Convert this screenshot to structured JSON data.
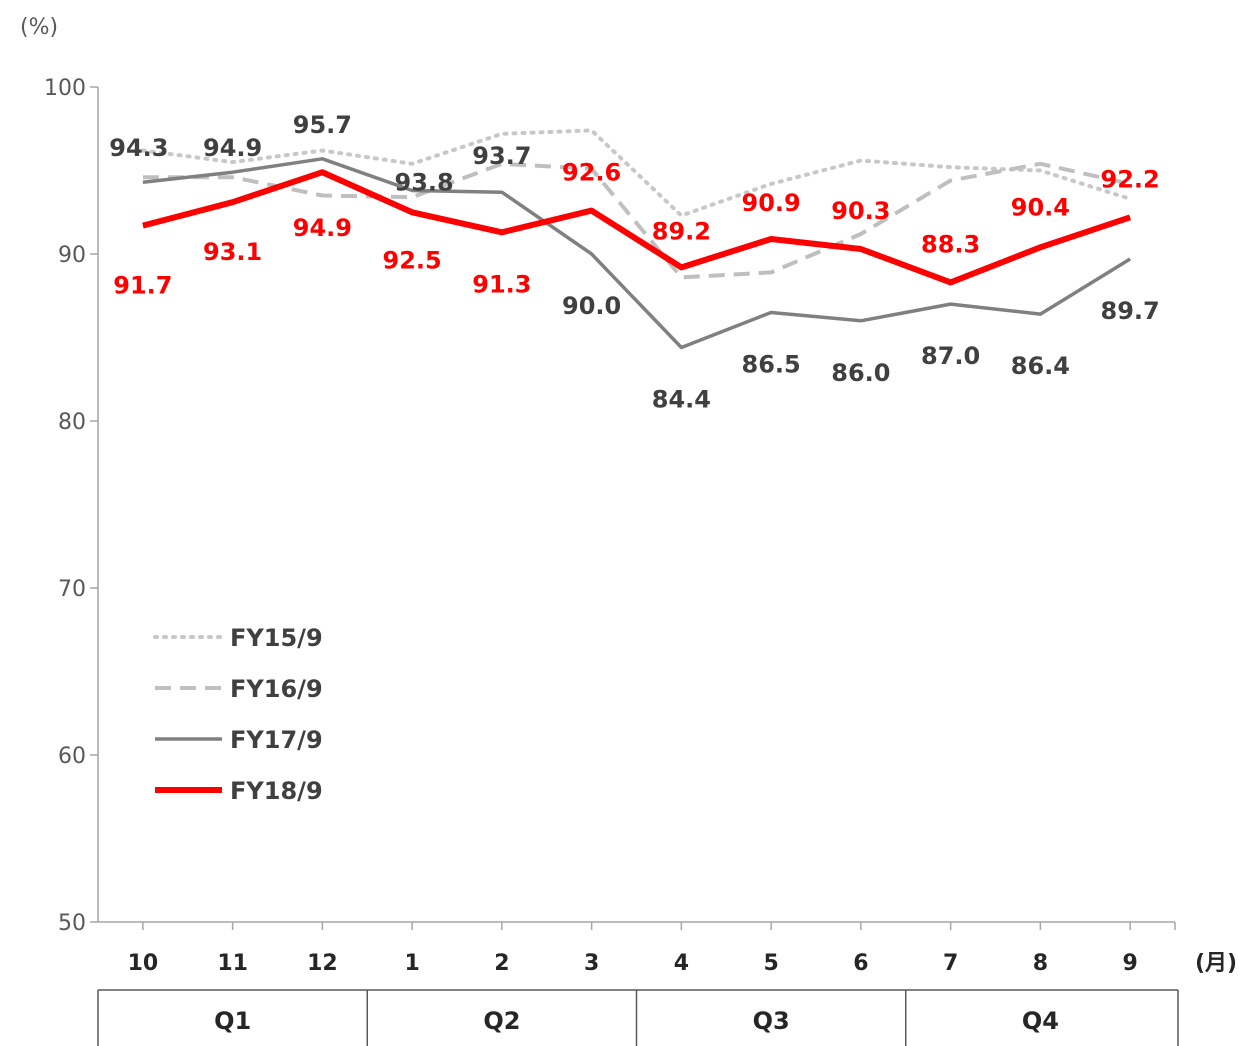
{
  "chart_data": {
    "type": "line",
    "y_unit": "(%)",
    "x_unit": "(月)",
    "categories": [
      "10",
      "11",
      "12",
      "1",
      "2",
      "3",
      "4",
      "5",
      "6",
      "7",
      "8",
      "9"
    ],
    "quarters": [
      "Q1",
      "Q2",
      "Q3",
      "Q4"
    ],
    "ylim": [
      50,
      100
    ],
    "yticks": [
      "50",
      "60",
      "70",
      "80",
      "90",
      "100"
    ],
    "grid": false,
    "legend_position": "lower-left",
    "series": [
      {
        "name": "FY15/9",
        "style": "dotted",
        "color": "#c8c8c8",
        "values": [
          96.2,
          95.5,
          96.2,
          95.4,
          97.2,
          97.4,
          92.3,
          94.2,
          95.6,
          95.2,
          95.0,
          93.3
        ]
      },
      {
        "name": "FY16/9",
        "style": "dashed",
        "color": "#bfbfbf",
        "values": [
          94.6,
          94.6,
          93.5,
          93.4,
          95.4,
          95.1,
          88.6,
          88.9,
          91.2,
          94.4,
          95.4,
          94.2
        ]
      },
      {
        "name": "FY17/9",
        "style": "solid",
        "color": "#808080",
        "values": [
          94.3,
          94.9,
          95.7,
          93.8,
          93.7,
          90.0,
          84.4,
          86.5,
          86.0,
          87.0,
          86.4,
          89.7
        ],
        "labels": [
          "94.3",
          "94.9",
          "95.7",
          "93.8",
          "93.7",
          "90.0",
          "84.4",
          "86.5",
          "86.0",
          "87.0",
          "86.4",
          "89.7"
        ],
        "label_color": "#404040"
      },
      {
        "name": "FY18/9",
        "style": "solid-thick",
        "color": "#ff0000",
        "values": [
          91.7,
          93.1,
          94.9,
          92.5,
          91.3,
          92.6,
          89.2,
          90.9,
          90.3,
          88.3,
          90.4,
          92.2
        ],
        "labels": [
          "91.7",
          "93.1",
          "94.9",
          "92.5",
          "91.3",
          "92.6",
          "89.2",
          "90.9",
          "90.3",
          "88.3",
          "90.4",
          "92.2"
        ],
        "label_color": "#ff0000"
      }
    ]
  }
}
